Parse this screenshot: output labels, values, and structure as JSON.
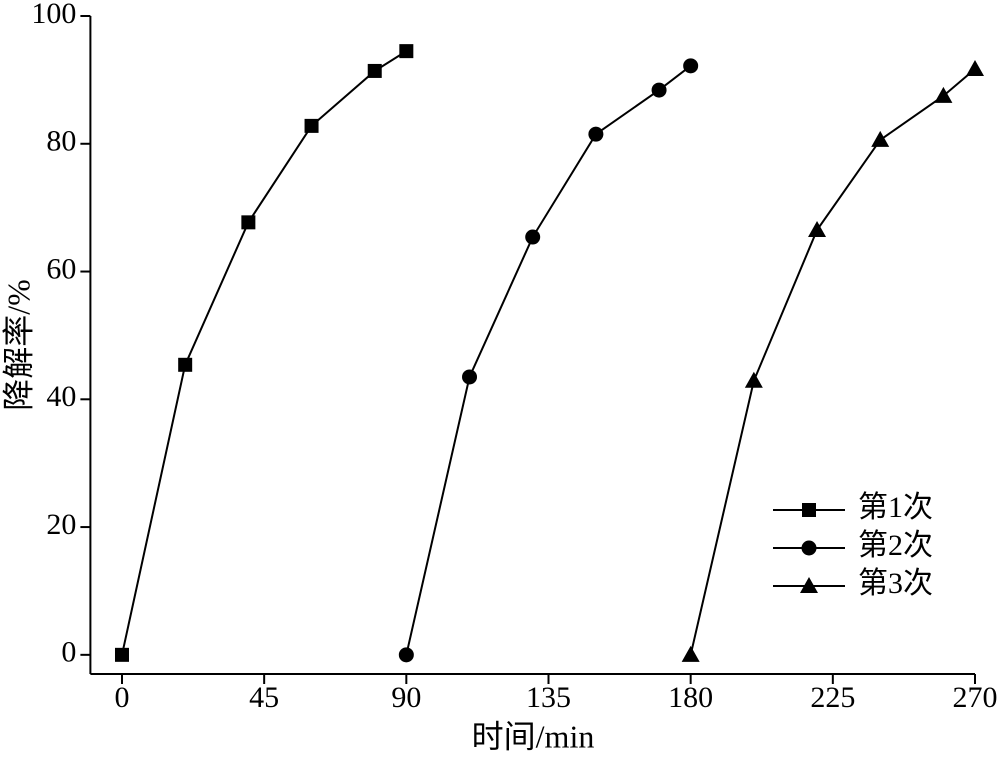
{
  "chart_data": {
    "type": "line",
    "x_label": "时间/min",
    "y_label": "降解率/%",
    "xlim": [
      -10,
      270
    ],
    "ylim": [
      -3,
      100
    ],
    "xticks": [
      0,
      45,
      90,
      135,
      180,
      225,
      270
    ],
    "yticks": [
      0,
      20,
      40,
      60,
      80,
      100
    ],
    "legend": "lower right",
    "series": [
      {
        "name": "第1次",
        "color": "#000000",
        "marker": "square",
        "x": [
          0,
          20,
          40,
          60,
          80,
          90
        ],
        "values": [
          0,
          45.4,
          67.7,
          82.8,
          91.4,
          94.5
        ]
      },
      {
        "name": "第2次",
        "color": "#000000",
        "marker": "circle",
        "x": [
          90,
          110,
          130,
          150,
          170,
          180
        ],
        "values": [
          0,
          43.5,
          65.4,
          81.5,
          88.4,
          92.2
        ]
      },
      {
        "name": "第3次",
        "color": "#000000",
        "marker": "triangle",
        "x": [
          180,
          200,
          220,
          240,
          260,
          270
        ],
        "values": [
          0,
          42.9,
          66.5,
          80.6,
          87.5,
          91.7
        ]
      }
    ]
  }
}
